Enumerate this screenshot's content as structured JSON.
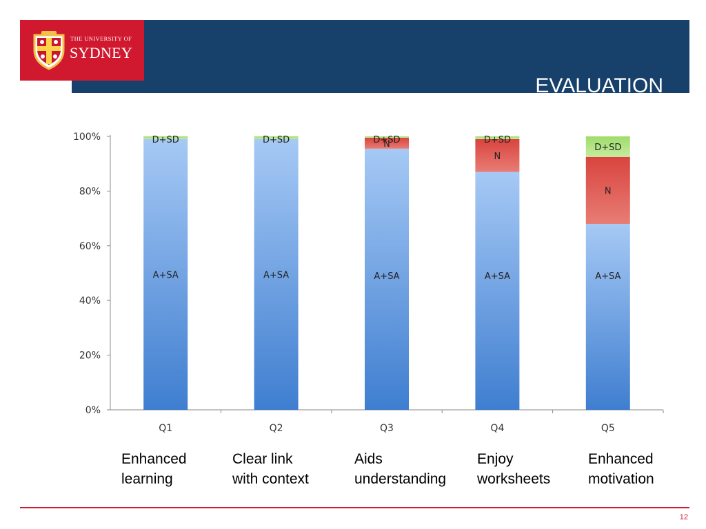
{
  "header": {
    "university_line": "THE UNIVERSITY OF",
    "university_name": "SYDNEY",
    "slide_title": "EVALUATION"
  },
  "colors": {
    "header_blue": "#17416b",
    "brand_red": "#d0182e",
    "series_colors": {
      "A+SA": "#5b97e0",
      "N": "#e05a55",
      "D+SD": "#a9e07a"
    }
  },
  "chart_data": {
    "type": "bar",
    "stacked": true,
    "percent_scale": true,
    "categories": [
      "Q1",
      "Q2",
      "Q3",
      "Q4",
      "Q5"
    ],
    "series": [
      {
        "name": "A+SA",
        "values": [
          99,
          99,
          95.5,
          87,
          68
        ]
      },
      {
        "name": "N",
        "values": [
          0,
          0,
          4,
          12,
          24.5
        ]
      },
      {
        "name": "D+SD",
        "values": [
          1,
          1,
          0.5,
          1,
          7.5
        ]
      }
    ],
    "ylim": [
      0,
      100
    ],
    "yticks": [
      "0%",
      "20%",
      "40%",
      "60%",
      "80%",
      "100%"
    ],
    "grid": false,
    "legend": "none"
  },
  "category_descriptions": [
    "Enhanced\nlearning",
    "Clear link\nwith context",
    "Aids\nunderstanding",
    "Enjoy\nworksheets",
    "Enhanced\nmotivation"
  ],
  "footer": {
    "page_number": "12"
  }
}
